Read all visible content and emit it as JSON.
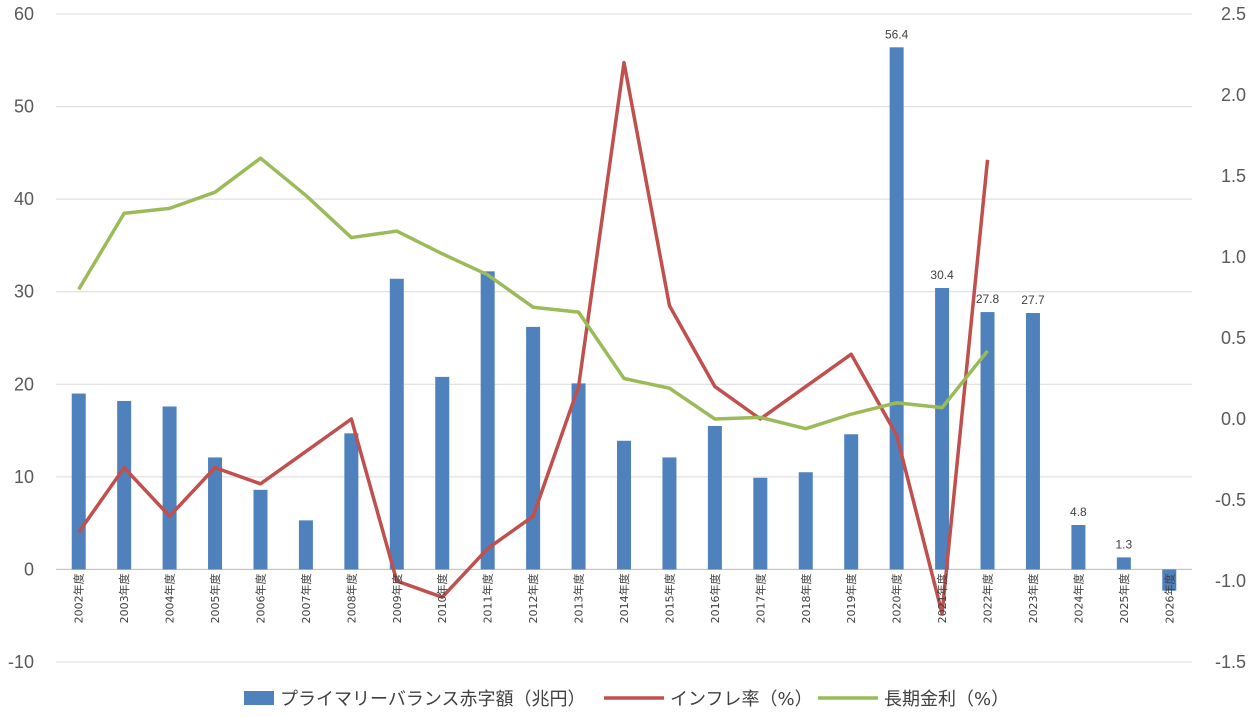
{
  "chart_data": {
    "type": "bar",
    "categories": [
      "2002年度",
      "2003年度",
      "2004年度",
      "2005年度",
      "2006年度",
      "2007年度",
      "2008年度",
      "2009年度",
      "2010年度",
      "2011年度",
      "2012年度",
      "2013年度",
      "2014年度",
      "2015年度",
      "2016年度",
      "2017年度",
      "2018年度",
      "2019年度",
      "2020年度",
      "2021年度",
      "2022年度",
      "2023年度",
      "2024年度",
      "2025年度",
      "2026年度"
    ],
    "series": [
      {
        "name": "プライマリーバランス赤字額（兆円）",
        "chart": "bar",
        "axis": "left",
        "color": "#4F81BD",
        "values": [
          19.0,
          18.2,
          17.6,
          12.1,
          8.6,
          5.3,
          14.7,
          31.4,
          20.8,
          32.2,
          26.2,
          20.1,
          13.9,
          12.1,
          15.5,
          9.9,
          10.5,
          14.6,
          56.4,
          30.4,
          27.8,
          27.7,
          4.8,
          1.3,
          -2.3
        ],
        "data_labels": {
          "2020年度": "56.4",
          "2021年度": "30.4",
          "2022年度": "27.8",
          "2023年度": "27.7",
          "2024年度": "4.8",
          "2025年度": "1.3"
        }
      },
      {
        "name": "インフレ率（%）",
        "chart": "line",
        "axis": "right",
        "color": "#C0504D",
        "values": [
          -0.7,
          -0.3,
          -0.6,
          -0.3,
          -0.4,
          -0.2,
          0.0,
          -1.0,
          -1.1,
          -0.8,
          -0.6,
          0.2,
          2.2,
          0.7,
          0.2,
          0.0,
          0.2,
          0.4,
          -0.1,
          -1.2,
          1.6,
          null,
          null,
          null,
          null
        ]
      },
      {
        "name": "長期金利（%）",
        "chart": "line",
        "axis": "right",
        "color": "#9BBB59",
        "values": [
          0.8,
          1.27,
          1.3,
          1.4,
          1.61,
          1.38,
          1.12,
          1.16,
          1.02,
          0.89,
          0.69,
          0.66,
          0.25,
          0.19,
          0.0,
          0.01,
          -0.06,
          0.03,
          0.1,
          0.07,
          0.42,
          null,
          null,
          null,
          null
        ]
      }
    ],
    "y_left": {
      "ylim": [
        -10,
        60
      ],
      "ticks": [
        "60",
        "50",
        "40",
        "30",
        "20",
        "10",
        "0",
        "-10"
      ]
    },
    "y_right": {
      "ylim": [
        -1.5,
        2.5
      ],
      "ticks": [
        "2.5",
        "2.0",
        "1.5",
        "1.0",
        "0.5",
        "0.0",
        "-0.5",
        "-1.0",
        "-1.5"
      ]
    },
    "grid": true,
    "legend_position": "bottom",
    "title": "",
    "xlabel": "",
    "ylabel": ""
  }
}
